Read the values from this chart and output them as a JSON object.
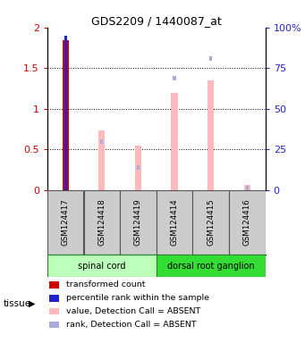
{
  "title": "GDS2209 / 1440087_at",
  "samples": [
    "GSM124417",
    "GSM124418",
    "GSM124419",
    "GSM124414",
    "GSM124415",
    "GSM124416"
  ],
  "tissue_groups": [
    {
      "label": "spinal cord",
      "indices": [
        0,
        1,
        2
      ],
      "color": "#bbffbb"
    },
    {
      "label": "dorsal root ganglion",
      "indices": [
        3,
        4,
        5
      ],
      "color": "#33dd33"
    }
  ],
  "transformed_count": [
    1.84,
    null,
    null,
    null,
    null,
    null
  ],
  "percentile_rank": [
    95.0,
    null,
    null,
    null,
    null,
    null
  ],
  "value_absent": [
    null,
    0.74,
    0.55,
    1.2,
    1.35,
    0.07
  ],
  "rank_absent": [
    null,
    0.6,
    0.28,
    1.38,
    1.62,
    0.03
  ],
  "ylim_left": [
    0,
    2.0
  ],
  "ylim_right": [
    0,
    100
  ],
  "yticks_left": [
    0,
    0.5,
    1.0,
    1.5,
    2.0
  ],
  "yticks_right": [
    0,
    25,
    50,
    75,
    100
  ],
  "yticklabels_left": [
    "0",
    "0.5",
    "1",
    "1.5",
    "2"
  ],
  "yticklabels_right": [
    "0",
    "25",
    "50",
    "75",
    "100%"
  ],
  "red_color": "#cc0000",
  "blue_color": "#2222cc",
  "pink_color": "#ffbbbb",
  "lavender_color": "#aaaadd",
  "gray_box_color": "#cccccc",
  "legend_items": [
    {
      "color": "#cc0000",
      "label": "transformed count"
    },
    {
      "color": "#2222cc",
      "label": "percentile rank within the sample"
    },
    {
      "color": "#ffbbbb",
      "label": "value, Detection Call = ABSENT"
    },
    {
      "color": "#aaaadd",
      "label": "rank, Detection Call = ABSENT"
    }
  ]
}
